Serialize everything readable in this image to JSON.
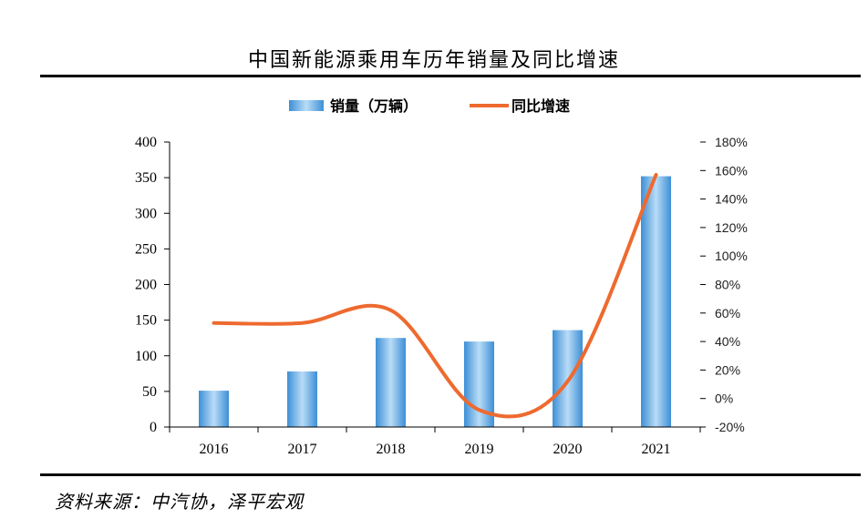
{
  "title": "中国新能源乘用车历年销量及同比增速",
  "source": "资料来源：中汽协，泽平宏观",
  "colors": {
    "bar": "#5fa3dd",
    "line": "#ee6a2f",
    "axis": "#000000"
  },
  "chart_data": {
    "type": "bar",
    "categories": [
      "2016",
      "2017",
      "2018",
      "2019",
      "2020",
      "2021"
    ],
    "series": [
      {
        "name": "销量（万辆）",
        "type": "bar",
        "axis": "left",
        "values": [
          51,
          78,
          125,
          120,
          136,
          352
        ]
      },
      {
        "name": "同比增速",
        "type": "line",
        "axis": "right",
        "values": [
          53,
          53,
          62,
          -8,
          12,
          157
        ]
      }
    ],
    "left_axis": {
      "min": 0,
      "max": 400,
      "step": 50,
      "ticks": [
        "0",
        "50",
        "100",
        "150",
        "200",
        "250",
        "300",
        "350",
        "400"
      ]
    },
    "right_axis": {
      "min": -20,
      "max": 180,
      "step": 20,
      "ticks": [
        "-20%",
        "0%",
        "20%",
        "40%",
        "60%",
        "80%",
        "100%",
        "120%",
        "140%",
        "160%",
        "180%"
      ]
    },
    "legend": {
      "position": "top",
      "items": [
        "销量（万辆）",
        "同比增速"
      ]
    }
  }
}
